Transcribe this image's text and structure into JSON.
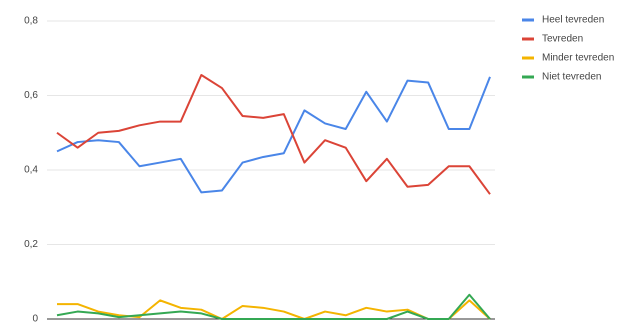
{
  "chart_data": {
    "type": "line",
    "categories": [
      null,
      null,
      null,
      null,
      null,
      null,
      null,
      null,
      null,
      null,
      null,
      null,
      null,
      null,
      null,
      null,
      null,
      null,
      null,
      null,
      null,
      null
    ],
    "series": [
      {
        "name": "Heel tevreden",
        "color": "#4a86e8",
        "values": [
          0.45,
          0.475,
          0.48,
          0.475,
          0.41,
          0.42,
          0.43,
          0.34,
          0.345,
          0.42,
          0.435,
          0.445,
          0.56,
          0.525,
          0.51,
          0.61,
          0.53,
          0.64,
          0.635,
          0.51,
          0.51,
          0.65
        ]
      },
      {
        "name": "Tevreden",
        "color": "#db4437",
        "values": [
          0.5,
          0.46,
          0.5,
          0.505,
          0.52,
          0.53,
          0.53,
          0.655,
          0.62,
          0.545,
          0.54,
          0.55,
          0.42,
          0.48,
          0.46,
          0.37,
          0.43,
          0.355,
          0.36,
          0.41,
          0.41,
          0.335
        ]
      },
      {
        "name": "Minder tevreden",
        "color": "#f4b400",
        "values": [
          0.04,
          0.04,
          0.02,
          0.01,
          0.005,
          0.05,
          0.03,
          0.025,
          0,
          0.035,
          0.03,
          0.02,
          0,
          0.02,
          0.01,
          0.03,
          0.02,
          0.025,
          0,
          0,
          0.05,
          0
        ]
      },
      {
        "name": "Niet tevreden",
        "color": "#34a853",
        "values": [
          0.01,
          0.02,
          0.015,
          0.005,
          0.01,
          0.015,
          0.02,
          0.015,
          0,
          0,
          0,
          0,
          0,
          0,
          0,
          0,
          0,
          0.02,
          0,
          0,
          0.065,
          0
        ]
      }
    ],
    "ylim": [
      0,
      0.8
    ],
    "yticks": [
      {
        "value": 0,
        "label": "0"
      },
      {
        "value": 0.2,
        "label": "0,2"
      },
      {
        "value": 0.4,
        "label": "0,4"
      },
      {
        "value": 0.6,
        "label": "0,6"
      },
      {
        "value": 0.8,
        "label": "0,8"
      }
    ],
    "grid": true,
    "legend": "right"
  }
}
